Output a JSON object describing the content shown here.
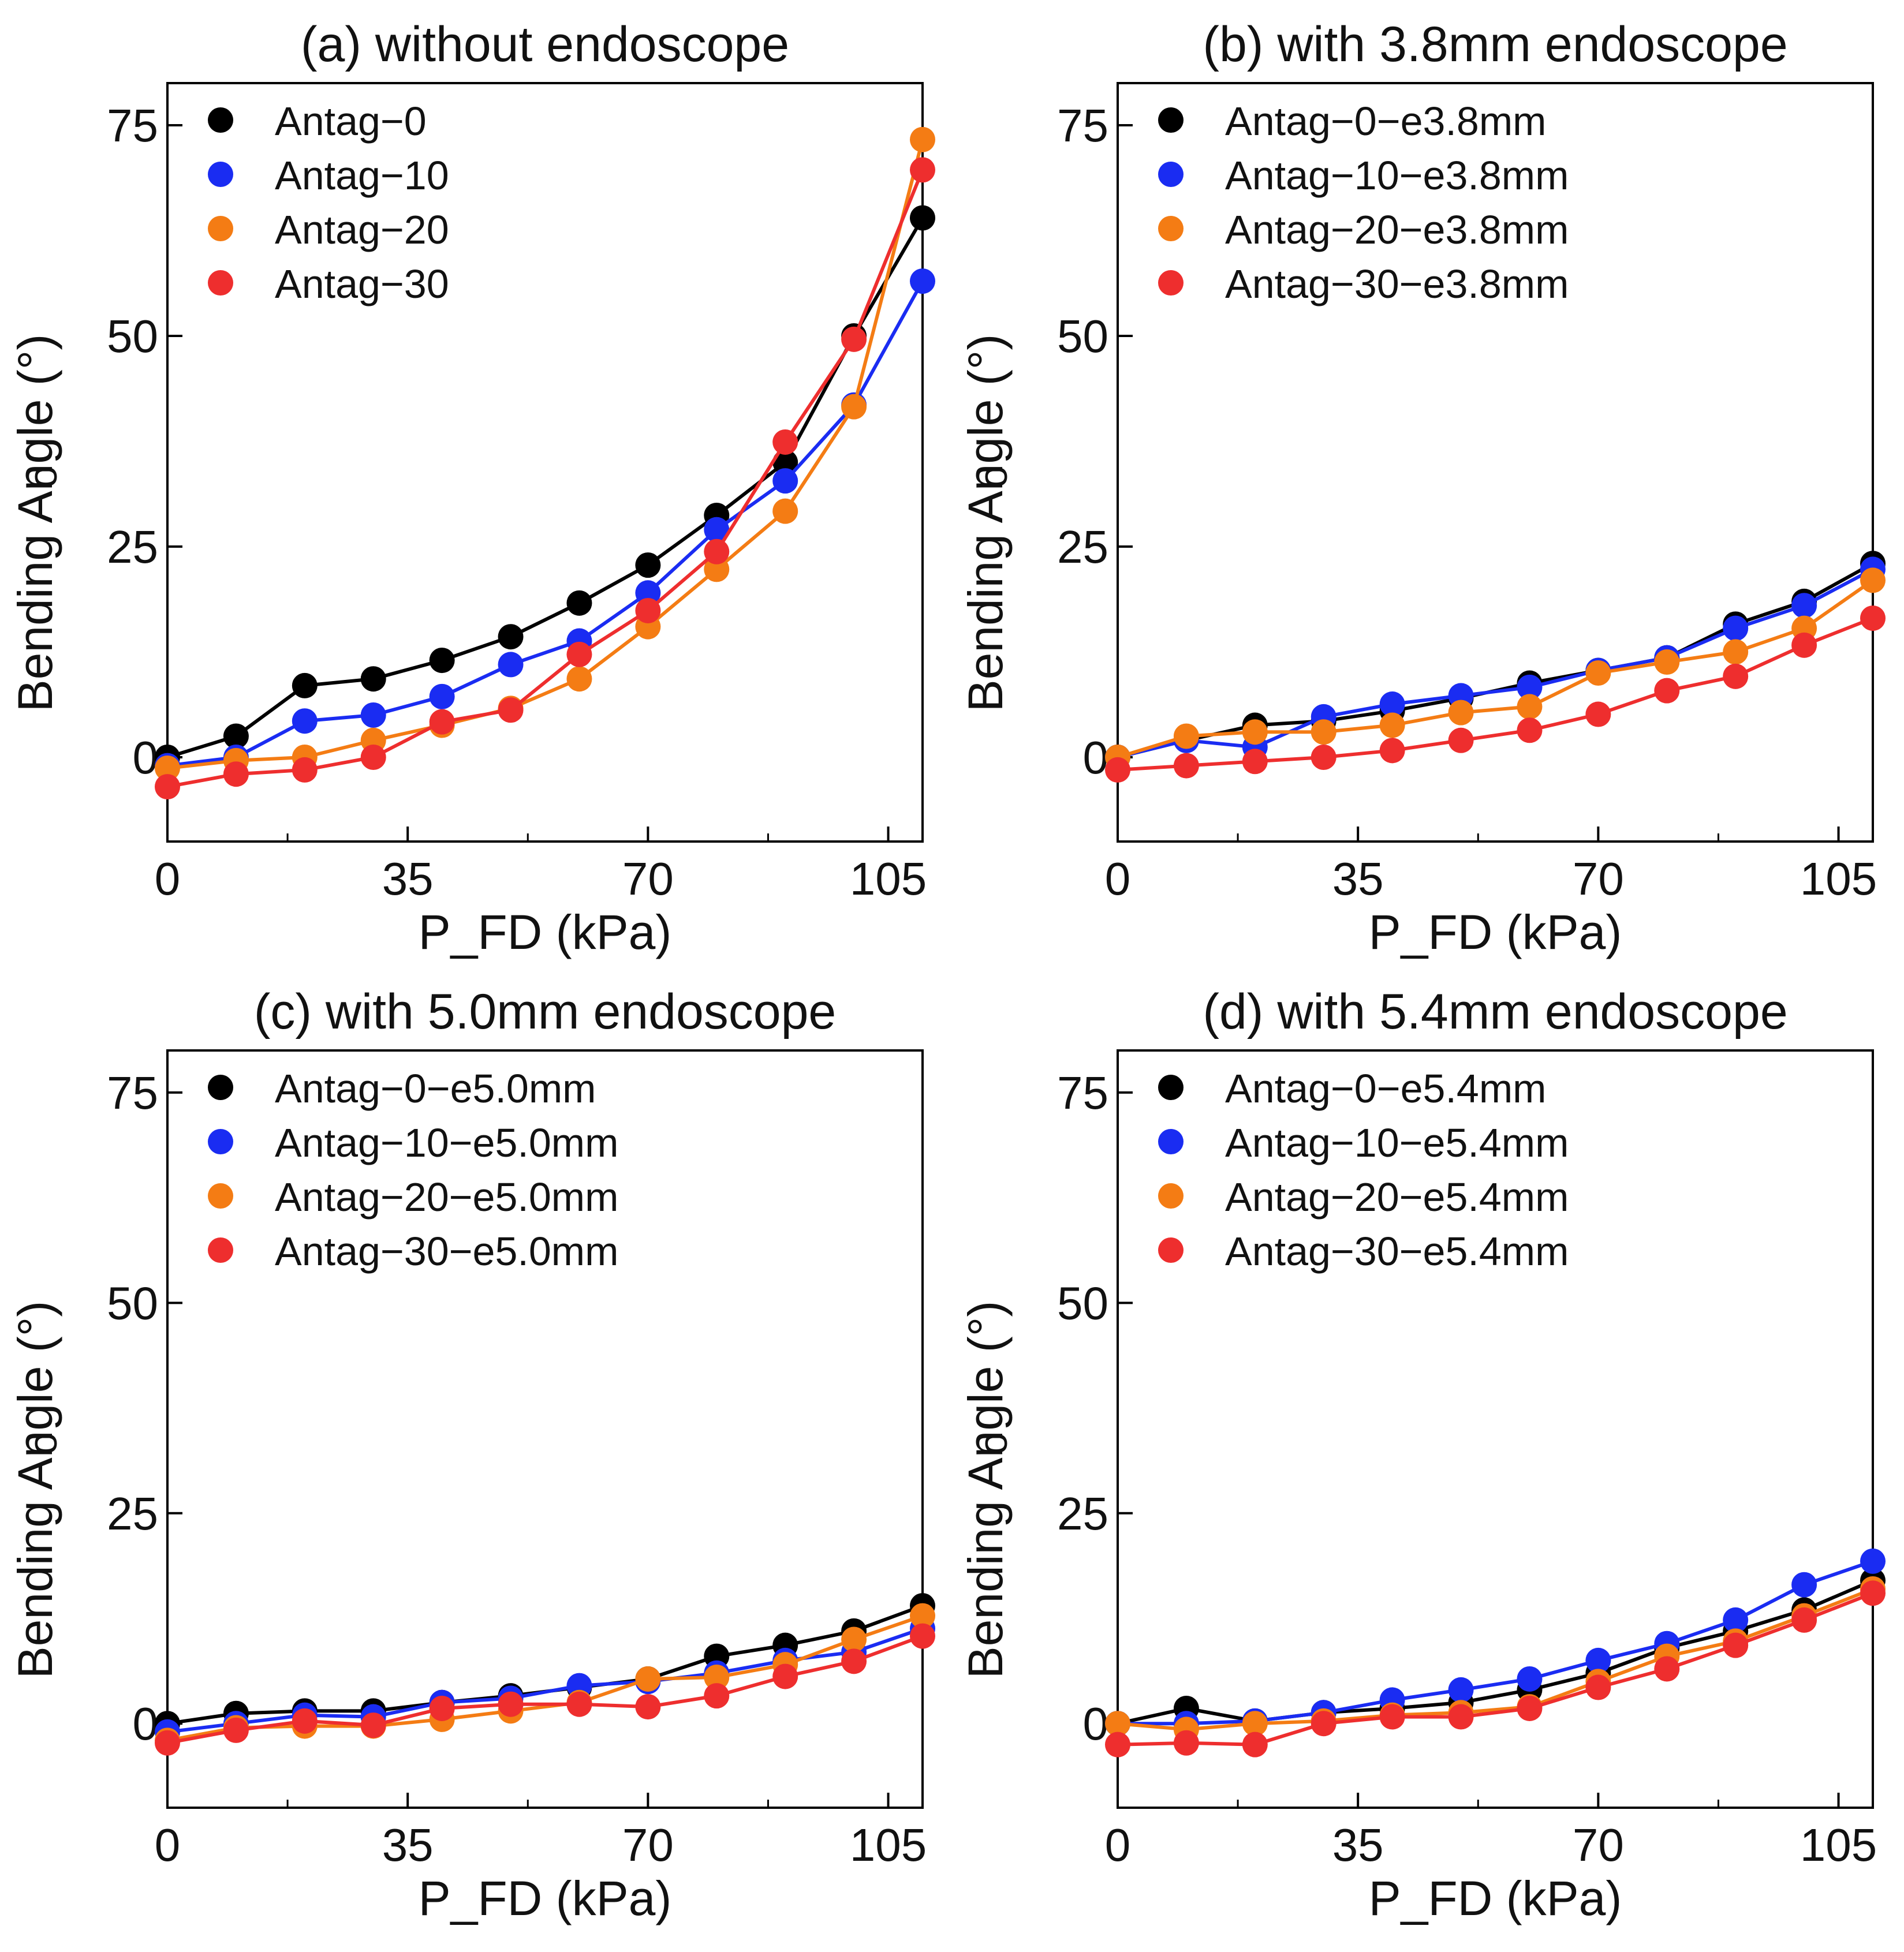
{
  "figure": {
    "panel_order": [
      "a",
      "b",
      "c",
      "d"
    ]
  },
  "chart_data": [
    {
      "type": "line",
      "panel": "a",
      "title": "(a) without endoscope",
      "xlabel": "P_FD (kPa)",
      "ylabel": "Bending Angle (°)",
      "ylabel_overlay": "o",
      "xlim": [
        0,
        110
      ],
      "ylim": [
        -10,
        80
      ],
      "xticks": [
        0,
        35,
        70,
        105
      ],
      "yticks": [
        0,
        25,
        50,
        75
      ],
      "x_minor_ticks": [
        17.5,
        52.5,
        87.5
      ],
      "grid": false,
      "legend_position": "top-left",
      "x": [
        0,
        10,
        20,
        30,
        40,
        50,
        60,
        70,
        80,
        90,
        100,
        110
      ],
      "series": [
        {
          "name": "Antag−0",
          "color": "#000000",
          "values": [
            0,
            2.5,
            8.5,
            9.3,
            11.5,
            14.3,
            18.3,
            22.8,
            28.7,
            35,
            50,
            64
          ]
        },
        {
          "name": "Antag−10",
          "color": "#1a2cf2",
          "values": [
            -1,
            0,
            4.3,
            5,
            7.2,
            11,
            13.8,
            19.5,
            27,
            32.8,
            41.8,
            56.5
          ]
        },
        {
          "name": "Antag−20",
          "color": "#f47c14",
          "values": [
            -1.3,
            -0.4,
            0,
            2,
            3.8,
            5.8,
            9.3,
            15.5,
            22.3,
            29.2,
            41.6,
            73.3
          ]
        },
        {
          "name": "Antag−30",
          "color": "#ee2e2e",
          "values": [
            -3.5,
            -2,
            -1.5,
            0,
            4.2,
            5.6,
            12.2,
            17.4,
            24.4,
            37.4,
            49.6,
            69.7
          ]
        }
      ]
    },
    {
      "type": "line",
      "panel": "b",
      "title": "(b) with 3.8mm endoscope",
      "xlabel": "P_FD (kPa)",
      "ylabel": "Bending Angle (°)",
      "ylabel_overlay": "o",
      "xlim": [
        0,
        110
      ],
      "ylim": [
        -10,
        80
      ],
      "xticks": [
        0,
        35,
        70,
        105
      ],
      "yticks": [
        0,
        25,
        50,
        75
      ],
      "x_minor_ticks": [
        17.5,
        52.5,
        87.5
      ],
      "grid": false,
      "legend_position": "top-left",
      "x": [
        0,
        10,
        20,
        30,
        40,
        50,
        60,
        70,
        80,
        90,
        100,
        110
      ],
      "series": [
        {
          "name": "Antag−0−e3.8mm",
          "color": "#000000",
          "values": [
            0,
            2,
            3.8,
            4.3,
            5.5,
            7,
            8.8,
            10.3,
            11.8,
            15.8,
            18.5,
            23
          ]
        },
        {
          "name": "Antag−10−e3.8mm",
          "color": "#1a2cf2",
          "values": [
            0,
            2,
            1.2,
            4.8,
            6.3,
            7.3,
            8.3,
            10.3,
            11.8,
            15.3,
            18,
            22.3
          ]
        },
        {
          "name": "Antag−20−e3.8mm",
          "color": "#f47c14",
          "values": [
            0,
            2.5,
            3,
            3,
            3.8,
            5.3,
            6,
            10,
            11.3,
            12.5,
            15.3,
            21
          ]
        },
        {
          "name": "Antag−30−e3.8mm",
          "color": "#ee2e2e",
          "values": [
            -1.5,
            -1,
            -0.5,
            0,
            0.8,
            2,
            3.2,
            5.1,
            7.9,
            9.6,
            13.3,
            16.5
          ]
        }
      ]
    },
    {
      "type": "line",
      "panel": "c",
      "title": "(c) with 5.0mm endoscope",
      "xlabel": "P_FD (kPa)",
      "ylabel": "Bending Angle (°)",
      "ylabel_overlay": "o",
      "xlim": [
        0,
        110
      ],
      "ylim": [
        -10,
        80
      ],
      "xticks": [
        0,
        35,
        70,
        105
      ],
      "yticks": [
        0,
        25,
        50,
        75
      ],
      "x_minor_ticks": [
        17.5,
        52.5,
        87.5
      ],
      "grid": false,
      "legend_position": "top-left",
      "x": [
        0,
        10,
        20,
        30,
        40,
        50,
        60,
        70,
        80,
        90,
        100,
        110
      ],
      "series": [
        {
          "name": "Antag−0−e5.0mm",
          "color": "#000000",
          "values": [
            0,
            1.2,
            1.5,
            1.5,
            2.5,
            3.3,
            4.3,
            5.3,
            8,
            9.3,
            11,
            14
          ]
        },
        {
          "name": "Antag−10−e5.0mm",
          "color": "#1a2cf2",
          "values": [
            -1,
            0,
            1,
            0.8,
            2.5,
            3,
            4.5,
            5,
            6,
            7.5,
            8.5,
            11.3
          ]
        },
        {
          "name": "Antag−20−e5.0mm",
          "color": "#f47c14",
          "values": [
            -2,
            -0.5,
            -0.3,
            -0.3,
            0.5,
            1.5,
            2.5,
            5.3,
            5.5,
            7,
            10,
            12.8
          ]
        },
        {
          "name": "Antag−30−e5.0mm",
          "color": "#ee2e2e",
          "values": [
            -2.3,
            -0.8,
            0.3,
            -0.2,
            1.8,
            2.3,
            2.3,
            2,
            3.3,
            5.6,
            7.4,
            10.4
          ]
        }
      ]
    },
    {
      "type": "line",
      "panel": "d",
      "title": "(d) with 5.4mm endoscope",
      "xlabel": "P_FD (kPa)",
      "ylabel": "Bending Angle (°)",
      "ylabel_overlay": "o",
      "xlim": [
        0,
        110
      ],
      "ylim": [
        -10,
        80
      ],
      "xticks": [
        0,
        35,
        70,
        105
      ],
      "yticks": [
        0,
        25,
        50,
        75
      ],
      "x_minor_ticks": [
        17.5,
        52.5,
        87.5
      ],
      "grid": false,
      "legend_position": "top-left",
      "x": [
        0,
        10,
        20,
        30,
        40,
        50,
        60,
        70,
        80,
        90,
        100,
        110
      ],
      "series": [
        {
          "name": "Antag−0−e5.4mm",
          "color": "#000000",
          "values": [
            0,
            1.8,
            0.3,
            1.3,
            1.8,
            2.5,
            4,
            6,
            9,
            11,
            13.5,
            17
          ]
        },
        {
          "name": "Antag−10−e5.4mm",
          "color": "#1a2cf2",
          "values": [
            0,
            0,
            0.3,
            1.3,
            2.8,
            4,
            5.3,
            7.5,
            9.5,
            12.3,
            16.5,
            19.3
          ]
        },
        {
          "name": "Antag−20−e5.4mm",
          "color": "#f47c14",
          "values": [
            0,
            -0.7,
            0,
            0.3,
            1,
            1.3,
            2,
            5,
            8,
            9.8,
            12.8,
            16
          ]
        },
        {
          "name": "Antag−30−e5.4mm",
          "color": "#ee2e2e",
          "values": [
            -2.5,
            -2.3,
            -2.5,
            0,
            0.8,
            0.8,
            1.8,
            4.3,
            6.5,
            9.3,
            12.3,
            15.5
          ]
        }
      ]
    }
  ]
}
